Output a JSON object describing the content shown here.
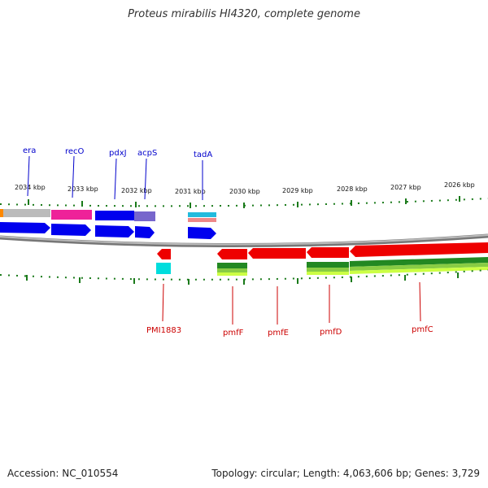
{
  "title": "Proteus mirabilis HI4320, complete genome",
  "footer": {
    "accession": "Accession: NC_010554",
    "summary": "Topology: circular; Length: 4,063,606 bp; Genes: 3,729"
  },
  "scale": {
    "kbp_labels": [
      "2034 kbp",
      "2033 kbp",
      "2032 kbp",
      "2031 kbp",
      "2030 kbp",
      "2029 kbp",
      "2028 kbp",
      "2027 kbp",
      "2026 kbp"
    ]
  },
  "genes_top": [
    {
      "name": "era"
    },
    {
      "name": "recO"
    },
    {
      "name": "pdxJ"
    },
    {
      "name": "acpS"
    },
    {
      "name": "tadA"
    }
  ],
  "genes_bottom": [
    {
      "name": "PMI1883"
    },
    {
      "name": "pmfF"
    },
    {
      "name": "pmfE"
    },
    {
      "name": "pmfD"
    },
    {
      "name": "pmfC"
    }
  ],
  "colors": {
    "forward_cds": "#0000ee",
    "reverse_cds": "#ee0000",
    "backbone": "#888888",
    "tick": "#1a7a1a",
    "label_top": "#0000cc",
    "label_bottom": "#cc0000"
  }
}
